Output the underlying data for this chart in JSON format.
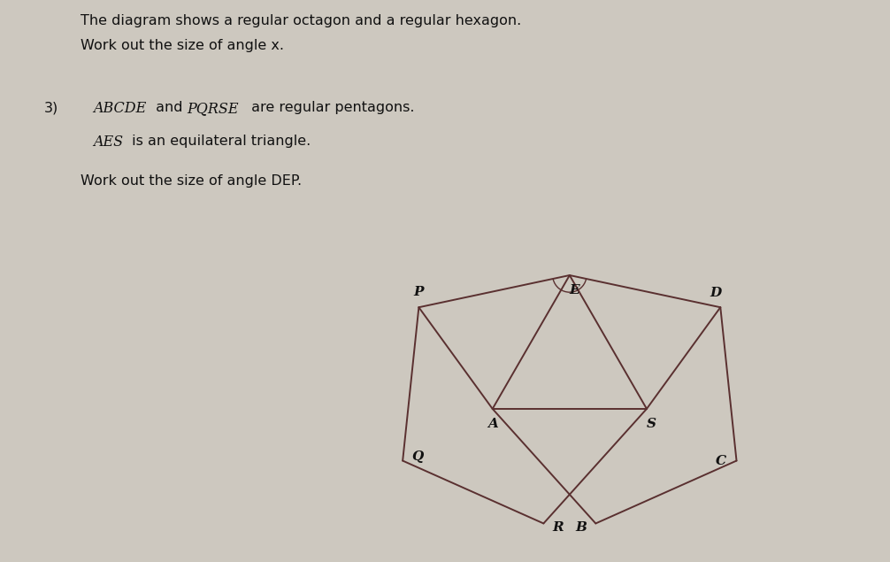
{
  "title_line1": "The diagram shows a regular octagon and a regular hexagon.",
  "title_line2": "Work out the size of angle x.",
  "problem_num": "3)",
  "problem_line1_italic": "ABCDE",
  "problem_line1_normal": " and ",
  "problem_line1_italic2": "PQRSE",
  "problem_line1_normal2": " are regular pentagons.",
  "problem_line2_italic": "AES",
  "problem_line2_normal": " is an equilateral triangle.",
  "problem_line3": "Work out the size of angle DEP.",
  "bg_color": "#cdc8bf",
  "line_color": "#5a3030",
  "text_color": "#111111",
  "label_fontsize": 11,
  "heading_fontsize": 11.5
}
